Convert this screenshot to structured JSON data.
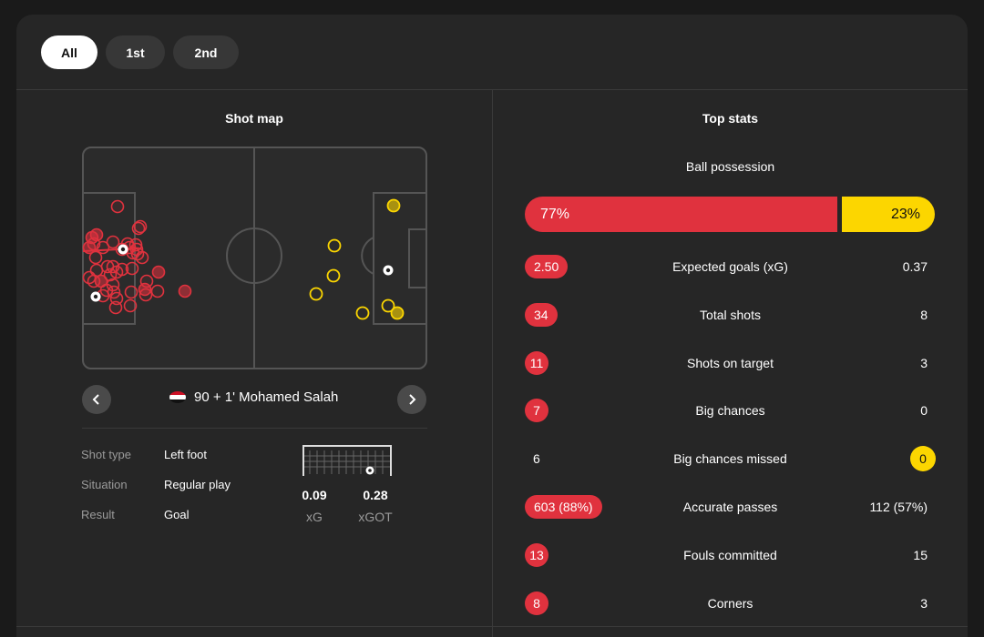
{
  "tabs": [
    {
      "label": "All",
      "active": true
    },
    {
      "label": "1st",
      "active": false
    },
    {
      "label": "2nd",
      "active": false
    }
  ],
  "shot_map": {
    "title": "Shot map",
    "home_color": "#e0323e",
    "away_color": "#fcd600",
    "selected_player": "90 + 1' Mohamed Salah",
    "nav_prev_icon": "chevron-left-icon",
    "nav_next_icon": "chevron-right-icon",
    "details": [
      {
        "label": "Shot type",
        "value": "Left foot"
      },
      {
        "label": "Situation",
        "value": "Regular play"
      },
      {
        "label": "Result",
        "value": "Goal"
      }
    ],
    "xg": {
      "value": "0.09",
      "label": "xG"
    },
    "xgot": {
      "value": "0.28",
      "label": "xGOT"
    }
  },
  "top_stats": {
    "title": "Top stats",
    "possession": {
      "label": "Ball possession",
      "home": "77%",
      "away": "23%",
      "home_fraction": 0.77
    },
    "rows": [
      {
        "label": "Expected goals (xG)",
        "home": "2.50",
        "away": "0.37",
        "highlight": "home"
      },
      {
        "label": "Total shots",
        "home": "34",
        "away": "8",
        "highlight": "home"
      },
      {
        "label": "Shots on target",
        "home": "11",
        "away": "3",
        "highlight": "home"
      },
      {
        "label": "Big chances",
        "home": "7",
        "away": "0",
        "highlight": "home"
      },
      {
        "label": "Big chances missed",
        "home": "6",
        "away": "0",
        "highlight": "away"
      },
      {
        "label": "Accurate passes",
        "home": "603 (88%)",
        "away": "112 (57%)",
        "highlight": "home"
      },
      {
        "label": "Fouls committed",
        "home": "13",
        "away": "15",
        "highlight": "home"
      },
      {
        "label": "Corners",
        "home": "8",
        "away": "3",
        "highlight": "home"
      }
    ]
  }
}
